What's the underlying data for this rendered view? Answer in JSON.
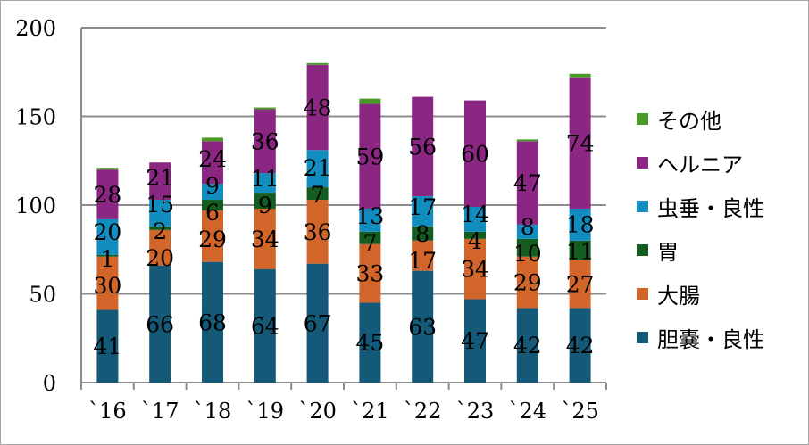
{
  "chart_data": {
    "type": "bar",
    "stacked": true,
    "categories": [
      "`16",
      "`17",
      "`18",
      "`19",
      "`20",
      "`21",
      "`22",
      "`23",
      "`24",
      "`25"
    ],
    "ylim": [
      0,
      200
    ],
    "yticks": [
      0,
      50,
      100,
      150,
      200
    ],
    "grid": true,
    "legend_position": "right",
    "series": [
      {
        "name": "胆嚢・良性",
        "color": "#145a78",
        "values": [
          41,
          66,
          68,
          64,
          67,
          45,
          63,
          47,
          42,
          42
        ],
        "labels": true
      },
      {
        "name": "大腸",
        "color": "#d2652a",
        "values": [
          30,
          20,
          29,
          34,
          36,
          33,
          17,
          34,
          29,
          27
        ],
        "labels": true
      },
      {
        "name": "胃",
        "color": "#155c21",
        "values": [
          1,
          2,
          6,
          9,
          7,
          7,
          8,
          4,
          10,
          11
        ],
        "labels": true
      },
      {
        "name": "虫垂・良性",
        "color": "#118dc0",
        "values": [
          20,
          15,
          9,
          11,
          21,
          13,
          17,
          14,
          8,
          18
        ],
        "labels": true
      },
      {
        "name": "ヘルニア",
        "color": "#8b2683",
        "values": [
          28,
          21,
          24,
          36,
          48,
          59,
          56,
          60,
          47,
          74
        ],
        "labels": true
      },
      {
        "name": "その他",
        "color": "#4a9a2a",
        "values": [
          1,
          0,
          2,
          1,
          1,
          3,
          0,
          0,
          1,
          2
        ],
        "labels": false
      }
    ]
  }
}
